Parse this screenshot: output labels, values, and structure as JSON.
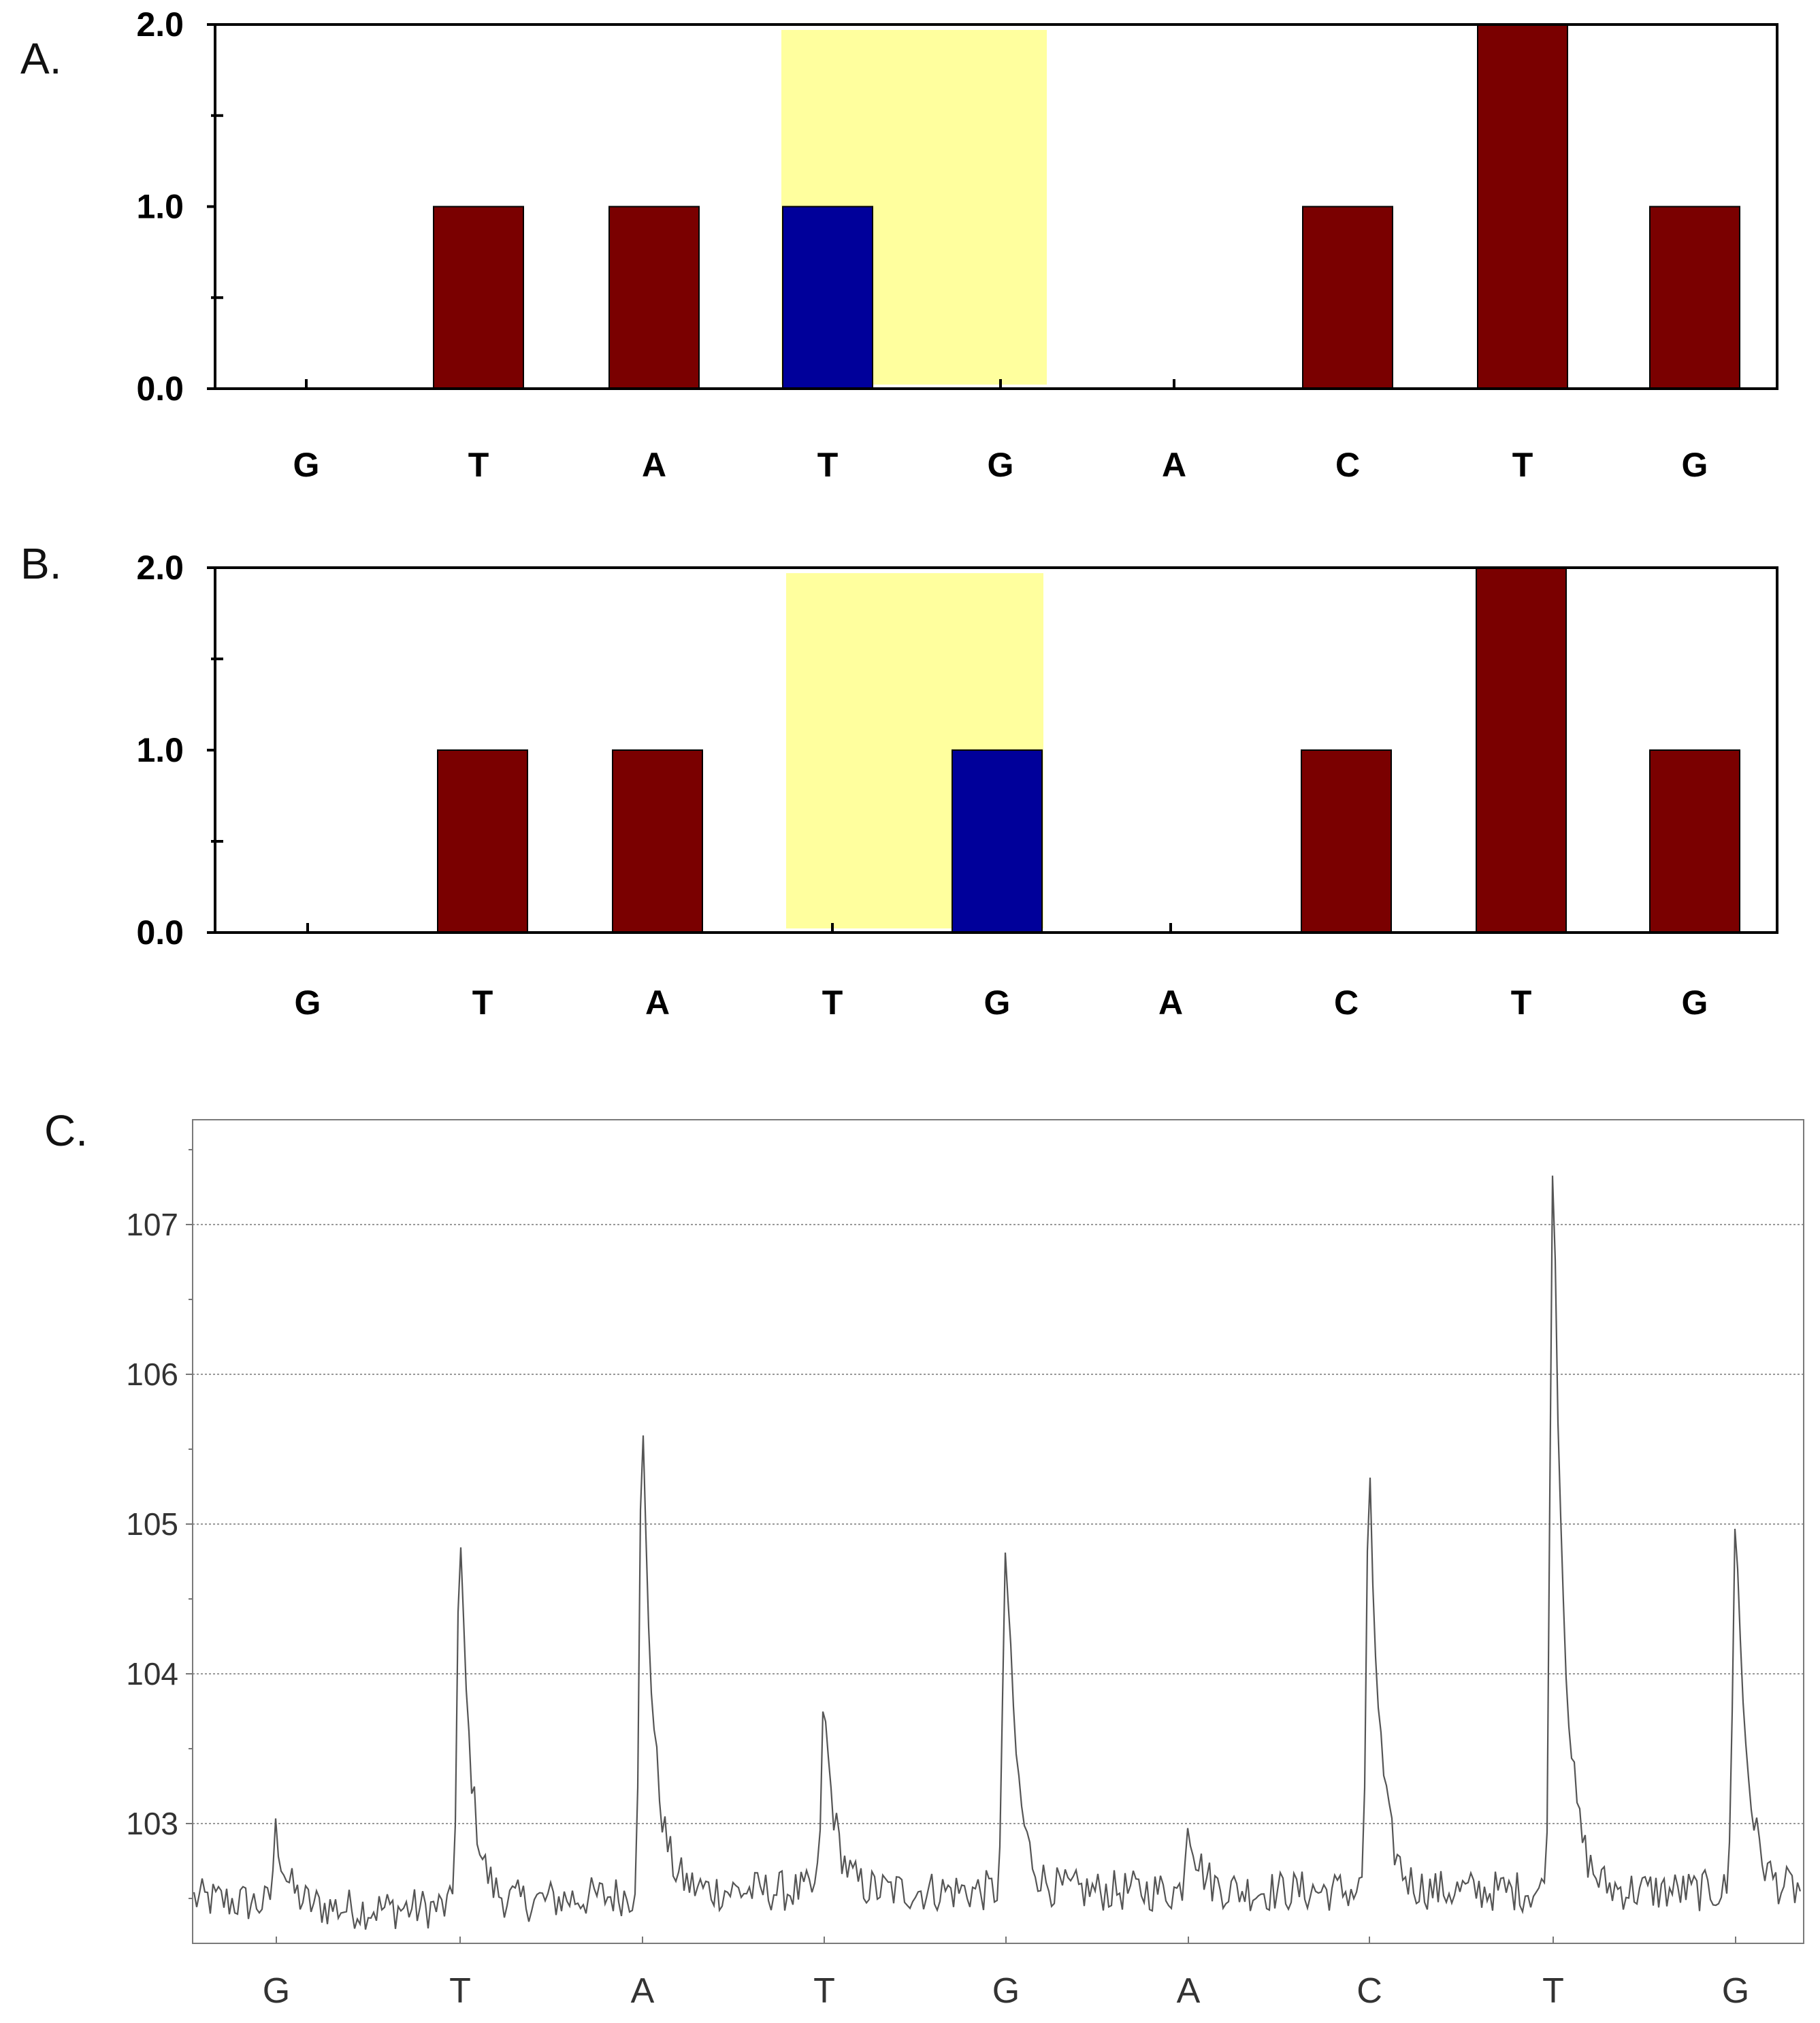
{
  "panels": {
    "a": {
      "label": "A."
    },
    "b": {
      "label": "B."
    },
    "c": {
      "label": "C."
    }
  },
  "colors": {
    "normal_bar": "#7a0000",
    "highlight_bar": "#00009a",
    "highlight_band": "#ffff9e",
    "trace": "#555555",
    "gridline": "#999999"
  },
  "chart_data": [
    {
      "panel": "A.",
      "type": "bar",
      "categories": [
        "G",
        "T",
        "A",
        "T",
        "G",
        "A",
        "C",
        "T",
        "G"
      ],
      "values": [
        0,
        1,
        1,
        1,
        0,
        0,
        1,
        2,
        1
      ],
      "highlighted_bar_index": 3,
      "highlight_band_categories": [
        3,
        4
      ],
      "yticks": [
        "0.0",
        "1.0",
        "2.0"
      ],
      "ylim": [
        0,
        2
      ],
      "grid": false
    },
    {
      "panel": "B.",
      "type": "bar",
      "categories": [
        "G",
        "T",
        "A",
        "T",
        "G",
        "A",
        "C",
        "T",
        "G"
      ],
      "values": [
        0,
        1,
        1,
        0,
        1,
        0,
        1,
        2,
        1
      ],
      "highlighted_bar_index": 4,
      "highlight_band_categories": [
        3,
        4
      ],
      "yticks": [
        "0.0",
        "1.0",
        "2.0"
      ],
      "ylim": [
        0,
        2
      ],
      "grid": false
    },
    {
      "panel": "C.",
      "type": "line",
      "dispensations": [
        "G",
        "T",
        "A",
        "T",
        "G",
        "A",
        "C",
        "T",
        "G"
      ],
      "baseline": 102.6,
      "peak_values": [
        103.1,
        105.1,
        105.8,
        103.85,
        104.95,
        103.1,
        105.4,
        107.65,
        105.15
      ],
      "yticks": [
        "103",
        "104",
        "105",
        "106",
        "107"
      ],
      "ylim": [
        102.2,
        107.7
      ],
      "grid": true
    }
  ]
}
